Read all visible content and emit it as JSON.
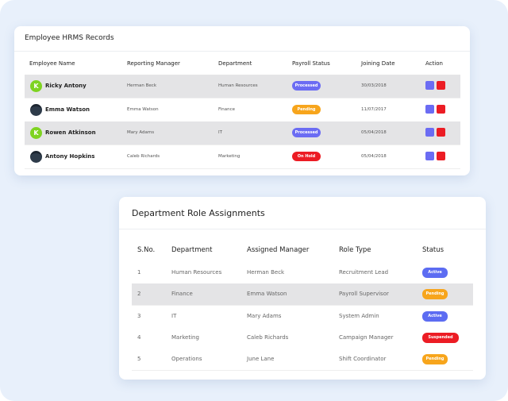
{
  "employee_card": {
    "title": "Employee HRMS Records",
    "headers": [
      "Employee Name",
      "Reporting Manager",
      "Department",
      "Payroll Status",
      "Joining Date",
      "Action"
    ],
    "rows": [
      {
        "avatar": "K",
        "name": "Ricky Antony",
        "manager": "Herman Beck",
        "department": "Human Resources",
        "status": "Processed",
        "date": "30/03/2018"
      },
      {
        "name": "Emma Watson",
        "manager": "Emma Watson",
        "department": "Finance",
        "status": "Pending",
        "date": "11/07/2017"
      },
      {
        "avatar": "K",
        "name": "Rowen Atkinson",
        "manager": "Mary Adams",
        "department": "IT",
        "status": "Processed",
        "date": "05/04/2018"
      },
      {
        "name": "Antony Hopkins",
        "manager": "Caleb Richards",
        "department": "Marketing",
        "status": "On Hold",
        "date": "05/04/2018"
      }
    ]
  },
  "role_card": {
    "title": "Department Role Assignments",
    "headers": [
      "S.No.",
      "Department",
      "Assigned Manager",
      "Role Type",
      "Status"
    ],
    "rows": [
      [
        "1",
        "Human Resources",
        "Herman Beck",
        "Recruitment Lead",
        "Active"
      ],
      [
        "2",
        "Finance",
        "Emma Watson",
        "Payroll Supervisor",
        "Pending"
      ],
      [
        "3",
        "IT",
        "Mary Adams",
        "System Admin",
        "Active"
      ],
      [
        "4",
        "Marketing",
        "Caleb Richards",
        "Campaign Manager",
        "Suspended"
      ],
      [
        "5",
        "Operations",
        "June Lane",
        "Shift Coordinator",
        "Pending"
      ]
    ]
  }
}
